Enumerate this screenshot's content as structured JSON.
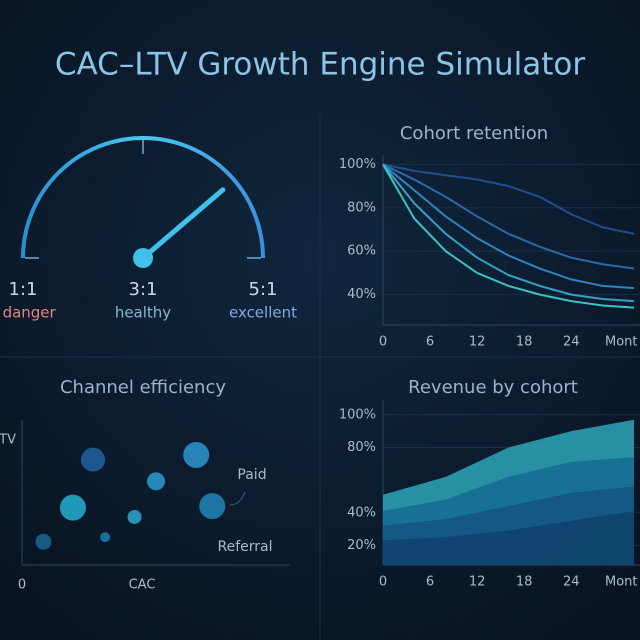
{
  "title": "CAC–LTV Growth Engine Simulator",
  "chart_data": [
    {
      "type": "gauge",
      "value": 4.1,
      "min": 1,
      "max": 5,
      "color": "#3fc1ea",
      "ticks": [
        {
          "value": 1,
          "label": "1:1",
          "zone": "– danger",
          "zone_color": "#e0877f"
        },
        {
          "value": 3,
          "label": "3:1",
          "zone": "healthy",
          "zone_color": "#8fb4d0"
        },
        {
          "value": 5,
          "label": "5:1",
          "zone": "excellent",
          "zone_color": "#8aa8e0"
        }
      ]
    },
    {
      "type": "line",
      "title": "Cohort retention",
      "xlabel": "Mont",
      "x": [
        0,
        4,
        8,
        12,
        16,
        20,
        24,
        28,
        32
      ],
      "xlim": [
        0,
        32
      ],
      "xticks": [
        0,
        6,
        12,
        18,
        24
      ],
      "ylim": [
        26,
        102
      ],
      "yticks": [
        {
          "value": 40,
          "label": "40%"
        },
        {
          "value": 60,
          "label": "60%"
        },
        {
          "value": 80,
          "label": "80%"
        },
        {
          "value": 100,
          "label": "100%"
        }
      ],
      "series": [
        {
          "color": "#1f4f8f",
          "values": [
            100,
            97,
            95,
            93,
            90,
            85,
            77,
            71,
            68
          ]
        },
        {
          "color": "#2a69ab",
          "values": [
            100,
            93,
            85,
            76,
            68,
            62,
            57,
            54,
            52
          ]
        },
        {
          "color": "#2f84c0",
          "values": [
            100,
            88,
            76,
            66,
            58,
            52,
            47,
            44,
            43
          ]
        },
        {
          "color": "#35a0c6",
          "values": [
            100,
            82,
            68,
            57,
            49,
            44,
            40,
            38,
            37
          ]
        },
        {
          "color": "#3cc2c6",
          "values": [
            100,
            75,
            60,
            50,
            44,
            40,
            37,
            35,
            34
          ]
        }
      ]
    },
    {
      "type": "scatter",
      "title": "Channel efficiency",
      "xlabel": "CAC",
      "ylabel": "TV",
      "xlim": [
        0,
        10
      ],
      "ylim": [
        0,
        10
      ],
      "xticks": [
        0
      ],
      "x": [
        0.8,
        1.9,
        2.65,
        3.1,
        4.2,
        5.0,
        6.5,
        7.1
      ],
      "values": [
        1.5,
        3.7,
        6.8,
        1.8,
        3.1,
        5.4,
        7.1,
        3.8
      ],
      "sizes": [
        8,
        13,
        12,
        5,
        7,
        9,
        13,
        13
      ],
      "colors": [
        "#1d5f8f",
        "#25a6c8",
        "#1e5f9a",
        "#1d7aa6",
        "#2a9fc8",
        "#2b95c6",
        "#2a8fc8",
        "#1e7fb0"
      ],
      "annotations": [
        "Paid",
        "Referral"
      ]
    },
    {
      "type": "area",
      "title": "Revenue by cohort",
      "xlabel": "Mont",
      "x": [
        0,
        8,
        16,
        24,
        32
      ],
      "xlim": [
        0,
        32
      ],
      "xticks": [
        0,
        6,
        12,
        18,
        24
      ],
      "ylim": [
        8,
        106
      ],
      "yticks": [
        {
          "value": 20,
          "label": "20%"
        },
        {
          "value": 40,
          "label": "40%"
        },
        {
          "value": 80,
          "label": "80%"
        },
        {
          "value": 100,
          "label": "100%"
        }
      ],
      "series": [
        {
          "color": "#0f4a78",
          "values": [
            23,
            25,
            29,
            35,
            41
          ]
        },
        {
          "color": "#155f8f",
          "values": [
            9,
            11,
            15,
            17,
            15
          ]
        },
        {
          "color": "#1b7aa3",
          "values": [
            9,
            12,
            18,
            19,
            18
          ]
        },
        {
          "color": "#2a9fb0",
          "values": [
            10,
            14,
            18,
            19,
            23
          ]
        }
      ]
    }
  ]
}
